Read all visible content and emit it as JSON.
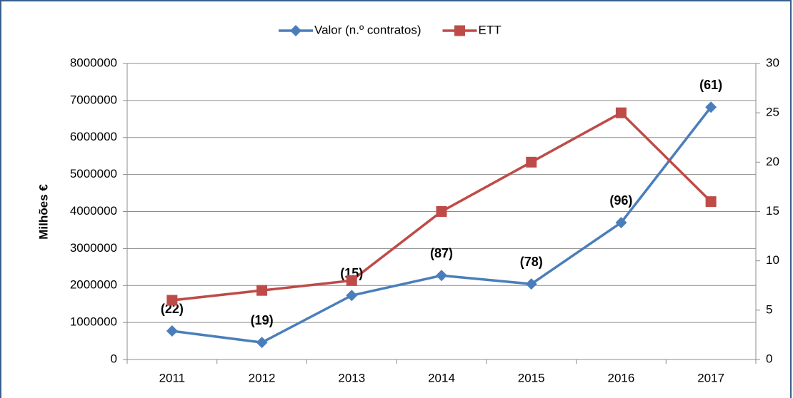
{
  "chart_data": {
    "type": "line",
    "categories": [
      "2011",
      "2012",
      "2013",
      "2014",
      "2015",
      "2016",
      "2017"
    ],
    "y_label": "Milhões €",
    "series": [
      {
        "name": "Valor (n.º contratos)",
        "color": "#4a7ebb",
        "marker": "diamond",
        "values": [
          770000,
          460000,
          1730000,
          2270000,
          2040000,
          3700000,
          6820000
        ],
        "point_labels": [
          "(22)",
          "(19)",
          "(15)",
          "(87)",
          "(78)",
          "(96)",
          "(61)"
        ]
      },
      {
        "name": "ETT",
        "color": "#be4b48",
        "marker": "square",
        "axis": "y2",
        "values": [
          6,
          7,
          8,
          15,
          20,
          25,
          16
        ]
      }
    ],
    "ylim": [
      0,
      8000000
    ],
    "yticks": [
      0,
      1000000,
      2000000,
      3000000,
      4000000,
      5000000,
      6000000,
      7000000,
      8000000
    ],
    "y2lim": [
      0,
      30
    ],
    "y2ticks": [
      0,
      5,
      10,
      15,
      20,
      25,
      30
    ],
    "grid": true,
    "legend": "top"
  }
}
